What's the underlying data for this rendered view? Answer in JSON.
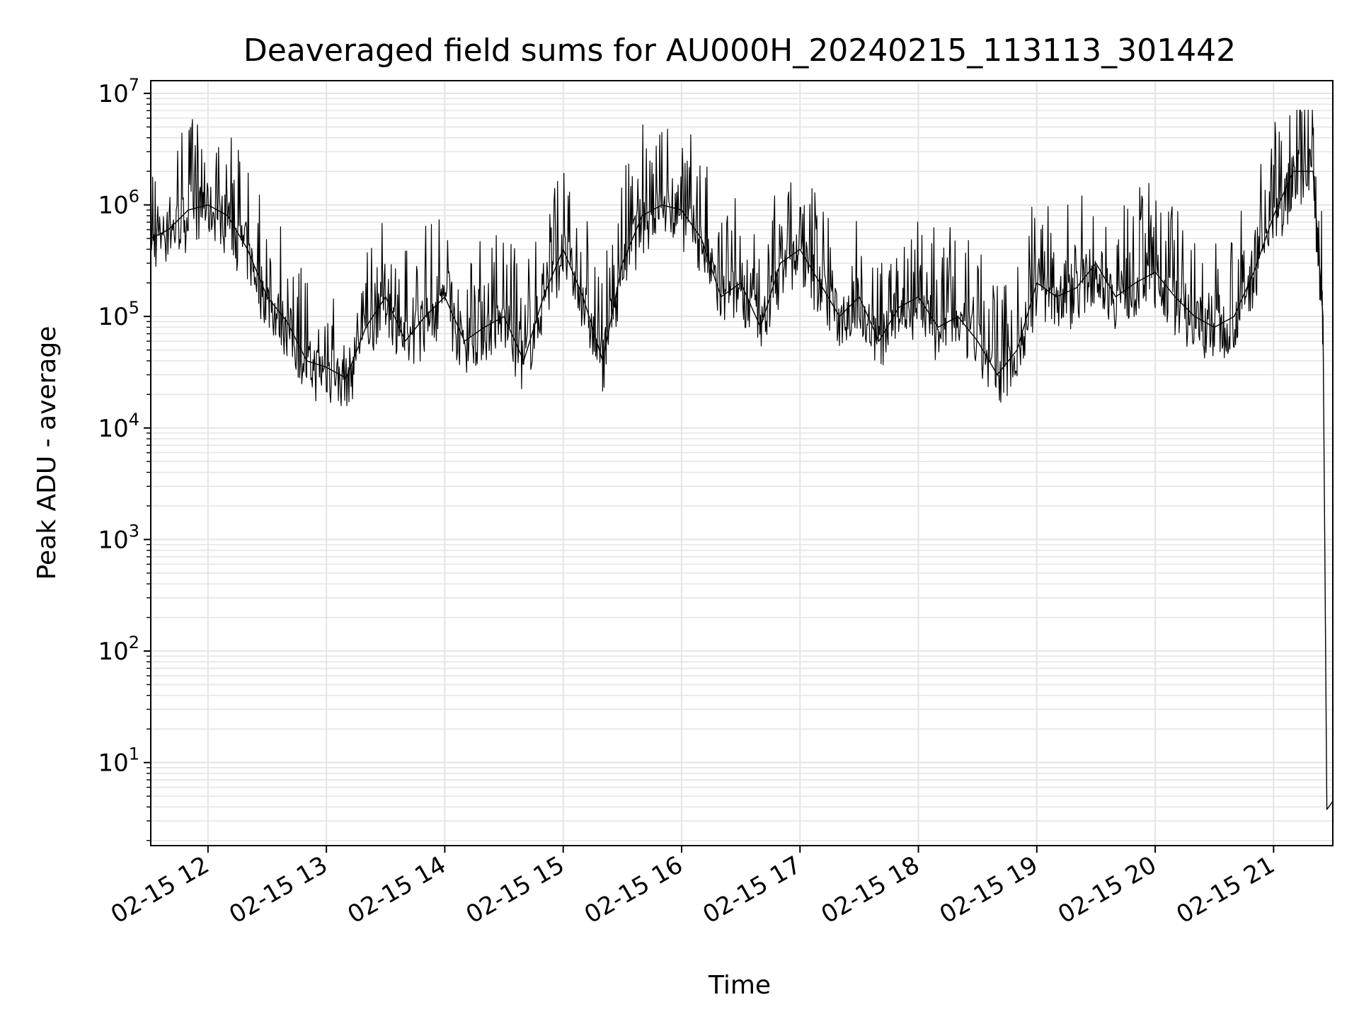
{
  "chart_data": {
    "type": "line",
    "title": "Deaveraged field sums for AU000H_20240215_113113_301442",
    "xlabel": "Time",
    "ylabel": "Peak ADU - average",
    "yscale": "log",
    "ylim": [
      1.8,
      13000000
    ],
    "xlim": [
      "2024-02-15 11:31",
      "2024-02-15 21:30"
    ],
    "grid": true,
    "line_color": "#000000",
    "grid_color": "#e5e5e5",
    "x_ticks": [
      {
        "value": "2024-02-15 12:00",
        "label": "02-15 12"
      },
      {
        "value": "2024-02-15 13:00",
        "label": "02-15 13"
      },
      {
        "value": "2024-02-15 14:00",
        "label": "02-15 14"
      },
      {
        "value": "2024-02-15 15:00",
        "label": "02-15 15"
      },
      {
        "value": "2024-02-15 16:00",
        "label": "02-15 16"
      },
      {
        "value": "2024-02-15 17:00",
        "label": "02-15 17"
      },
      {
        "value": "2024-02-15 18:00",
        "label": "02-15 18"
      },
      {
        "value": "2024-02-15 19:00",
        "label": "02-15 19"
      },
      {
        "value": "2024-02-15 20:00",
        "label": "02-15 20"
      },
      {
        "value": "2024-02-15 21:00",
        "label": "02-15 21"
      }
    ],
    "y_ticks": [
      {
        "value": 10,
        "exp": "1"
      },
      {
        "value": 100,
        "exp": "2"
      },
      {
        "value": 1000,
        "exp": "3"
      },
      {
        "value": 10000,
        "exp": "4"
      },
      {
        "value": 100000,
        "exp": "5"
      },
      {
        "value": 1000000,
        "exp": "6"
      },
      {
        "value": 10000000,
        "exp": "7"
      }
    ],
    "y_tick_base": "10",
    "series": [
      {
        "x": [
          "2024-02-15 11:31",
          "2024-02-15 11:40",
          "2024-02-15 11:50",
          "2024-02-15 12:00",
          "2024-02-15 12:10",
          "2024-02-15 12:20",
          "2024-02-15 12:30",
          "2024-02-15 12:40",
          "2024-02-15 12:50",
          "2024-02-15 13:00",
          "2024-02-15 13:10",
          "2024-02-15 13:20",
          "2024-02-15 13:30",
          "2024-02-15 13:40",
          "2024-02-15 13:50",
          "2024-02-15 14:00",
          "2024-02-15 14:10",
          "2024-02-15 14:20",
          "2024-02-15 14:30",
          "2024-02-15 14:40",
          "2024-02-15 14:50",
          "2024-02-15 15:00",
          "2024-02-15 15:10",
          "2024-02-15 15:20",
          "2024-02-15 15:30",
          "2024-02-15 15:40",
          "2024-02-15 15:50",
          "2024-02-15 16:00",
          "2024-02-15 16:10",
          "2024-02-15 16:20",
          "2024-02-15 16:30",
          "2024-02-15 16:40",
          "2024-02-15 16:50",
          "2024-02-15 17:00",
          "2024-02-15 17:10",
          "2024-02-15 17:20",
          "2024-02-15 17:30",
          "2024-02-15 17:40",
          "2024-02-15 17:50",
          "2024-02-15 18:00",
          "2024-02-15 18:10",
          "2024-02-15 18:20",
          "2024-02-15 18:30",
          "2024-02-15 18:40",
          "2024-02-15 18:50",
          "2024-02-15 19:00",
          "2024-02-15 19:10",
          "2024-02-15 19:20",
          "2024-02-15 19:30",
          "2024-02-15 19:40",
          "2024-02-15 19:50",
          "2024-02-15 20:00",
          "2024-02-15 20:10",
          "2024-02-15 20:20",
          "2024-02-15 20:30",
          "2024-02-15 20:40",
          "2024-02-15 20:50",
          "2024-02-15 21:00",
          "2024-02-15 21:10",
          "2024-02-15 21:20",
          "2024-02-15 21:25",
          "2024-02-15 21:27",
          "2024-02-15 21:30"
        ],
        "y": [
          500000,
          600000,
          900000,
          1000000,
          800000,
          400000,
          150000,
          90000,
          40000,
          35000,
          28000,
          80000,
          150000,
          60000,
          100000,
          150000,
          60000,
          80000,
          100000,
          40000,
          150000,
          400000,
          150000,
          40000,
          300000,
          800000,
          1000000,
          900000,
          500000,
          150000,
          200000,
          80000,
          300000,
          400000,
          200000,
          100000,
          150000,
          60000,
          120000,
          150000,
          80000,
          100000,
          60000,
          30000,
          50000,
          200000,
          150000,
          180000,
          300000,
          150000,
          200000,
          250000,
          150000,
          100000,
          80000,
          100000,
          250000,
          800000,
          2000000,
          2000000,
          100000,
          3.8,
          4.5
        ]
      }
    ]
  }
}
